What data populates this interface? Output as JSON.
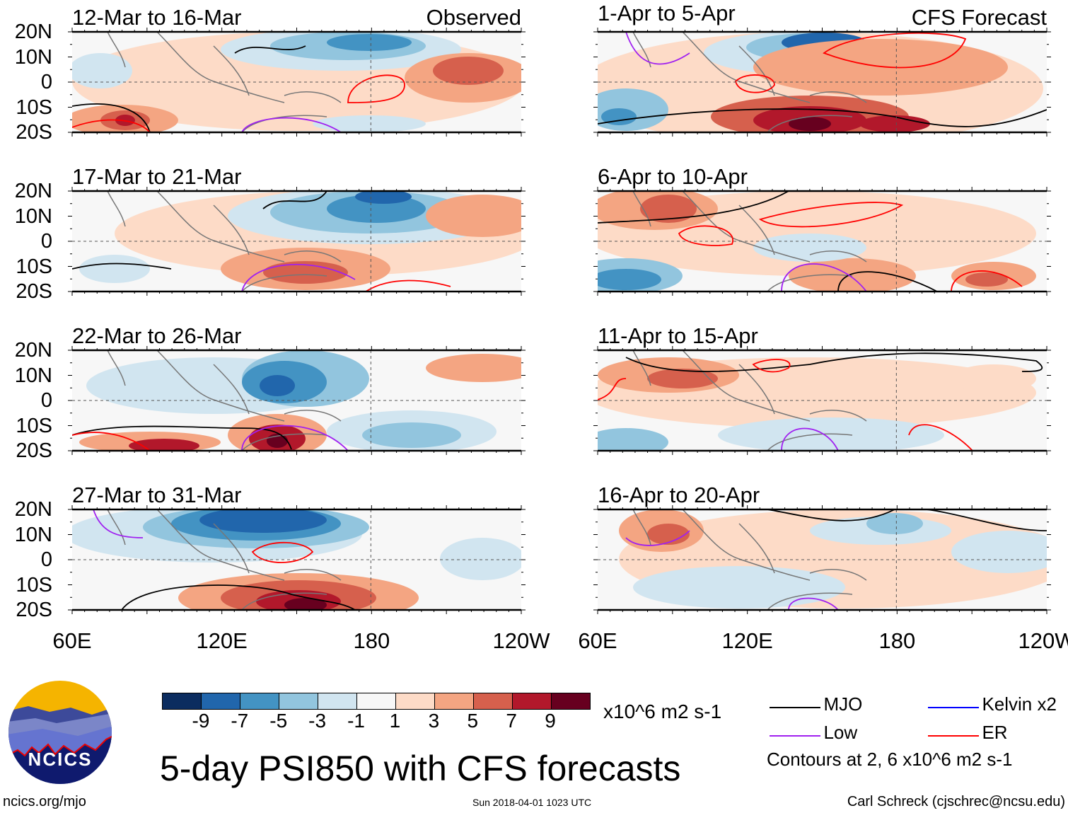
{
  "panels": [
    {
      "title": "12-Mar to 16-Mar",
      "tag": "Observed"
    },
    {
      "title": "17-Mar to 21-Mar"
    },
    {
      "title": "22-Mar to 26-Mar"
    },
    {
      "title": "27-Mar to 31-Mar"
    },
    {
      "title": "1-Apr to 5-Apr",
      "tag": "CFS Forecast"
    },
    {
      "title": "6-Apr to 10-Apr"
    },
    {
      "title": "11-Apr to 15-Apr"
    },
    {
      "title": "16-Apr to 20-Apr"
    }
  ],
  "lat_labels": [
    "20N",
    "10N",
    "0",
    "10S",
    "20S"
  ],
  "lon_labels": [
    "60E",
    "120E",
    "180",
    "120W"
  ],
  "colorbar": {
    "levels": [
      "-9",
      "-7",
      "-5",
      "-3",
      "-1",
      "1",
      "3",
      "5",
      "7",
      "9"
    ],
    "colors": [
      "#0b2c5f",
      "#2166ac",
      "#4393c3",
      "#92c5de",
      "#d1e5f0",
      "#f7f7f7",
      "#fddbc7",
      "#f4a582",
      "#d6604d",
      "#b2182b",
      "#67001f"
    ],
    "units": "x10^6 m2 s-1"
  },
  "title": "5-day PSI850 with CFS forecasts",
  "legend": [
    {
      "label": "MJO",
      "color": "#000000"
    },
    {
      "label": "Kelvin x2",
      "color": "#0000ff"
    },
    {
      "label": "Low",
      "color": "#a020f0"
    },
    {
      "label": "ER",
      "color": "#ff0000"
    }
  ],
  "contour_note": "Contours at 2, 6 x10^6 m2 s-1",
  "logo": {
    "text": "NCICS"
  },
  "url": "ncics.org/mjo",
  "timestamp": "Sun 2018-04-01 1023 UTC",
  "credit": "Carl Schreck (cjschrec@ncsu.edu)"
}
